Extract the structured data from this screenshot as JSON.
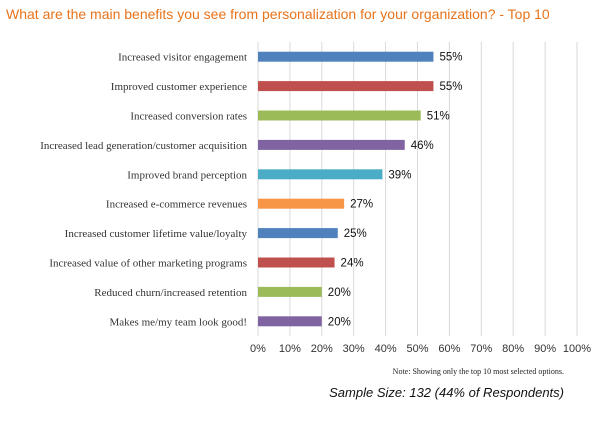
{
  "chart_data": {
    "type": "bar",
    "orientation": "horizontal",
    "title": "What are the main benefits you see from personalization for your organization? - Top 10",
    "categories": [
      "Increased visitor engagement",
      "Improved customer experience",
      "Increased conversion rates",
      "Increased lead generation/customer acquisition",
      "Improved brand perception",
      "Increased e-commerce revenues",
      "Increased customer lifetime value/loyalty",
      "Increased value of other marketing programs",
      "Reduced churn/increased retention",
      "Makes me/my team look good!"
    ],
    "values": [
      55,
      55,
      51,
      46,
      39,
      27,
      25,
      24,
      20,
      20
    ],
    "value_labels": [
      "55%",
      "55%",
      "51%",
      "46%",
      "39%",
      "27%",
      "25%",
      "24%",
      "20%",
      "20%"
    ],
    "colors": [
      "#4f81bd",
      "#c0504d",
      "#9bbb59",
      "#8064a2",
      "#4bacc6",
      "#f79646",
      "#4f81bd",
      "#c0504d",
      "#9bbb59",
      "#8064a2"
    ],
    "xlim": [
      0,
      100
    ],
    "ticks": [
      "0%",
      "10%",
      "20%",
      "30%",
      "40%",
      "50%",
      "60%",
      "70%",
      "80%",
      "90%",
      "100%"
    ],
    "grid": true,
    "xlabel": "",
    "ylabel": ""
  },
  "note": "Note: Showing only the top 10 most selected options.",
  "sample_size": "Sample Size: 132 (44% of Respondents)",
  "colors": {
    "title": "#e8731a",
    "grid": "#d9d9d9"
  }
}
